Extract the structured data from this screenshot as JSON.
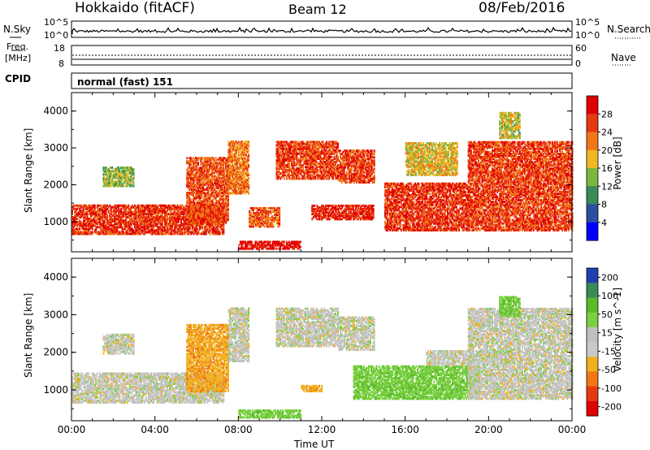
{
  "header": {
    "radar": "Hokkaido (fitACF)",
    "beam": "Beam 12",
    "date": "08/Feb/2016"
  },
  "noise_panel": {
    "left_label": "N.Sky",
    "left_ticks": [
      "10^5",
      "10^0"
    ],
    "right_ticks": [
      "10^5",
      "10^0"
    ],
    "right_label": "N.Search",
    "right_label_style": "dotted"
  },
  "freq_panel": {
    "left_label_line1": "Freq.",
    "left_label_line2": "[MHz]",
    "left_ticks": [
      "18",
      "8"
    ],
    "right_ticks": [
      "60",
      "0"
    ],
    "right_label": "Nave",
    "right_label_style": "dotted"
  },
  "cpid_panel": {
    "label": "CPID",
    "mode": "normal (fast) 151"
  },
  "colors": {
    "power_scale": [
      "#0000ff",
      "#2a4fa0",
      "#3a8a5a",
      "#7ab840",
      "#f0b820",
      "#f07818",
      "#e83810",
      "#e00000"
    ],
    "velocity_scale": [
      "#2040b0",
      "#3a8a5a",
      "#5aba2a",
      "#7ad040",
      "#c0c0c0",
      "#c8c8c8",
      "#f0b020",
      "#f07818",
      "#e83810",
      "#e00000"
    ]
  },
  "chart_data": [
    {
      "type": "heatmap",
      "panel": "power",
      "ylabel": "Slant Range [km]",
      "ylim": [
        180,
        4500
      ],
      "yticks": [
        "1000",
        "2000",
        "3000",
        "4000"
      ],
      "xlim_hours": [
        0,
        24
      ],
      "colorbar": {
        "label": "Power [dB]",
        "ticks": [
          "28",
          "24",
          "20",
          "16",
          "12",
          "8",
          "4"
        ],
        "range": [
          0,
          32
        ]
      },
      "echo_bands": [
        {
          "t_start": 0.0,
          "t_end": 7.3,
          "range_low": 700,
          "range_high": 1500,
          "power_db": 27
        },
        {
          "t_start": 1.5,
          "t_end": 3.0,
          "range_low": 2000,
          "range_high": 2500,
          "power_db": 14
        },
        {
          "t_start": 5.5,
          "t_end": 7.5,
          "range_low": 1000,
          "range_high": 2800,
          "power_db": 25
        },
        {
          "t_start": 7.5,
          "t_end": 8.5,
          "range_low": 1800,
          "range_high": 3200,
          "power_db": 22
        },
        {
          "t_start": 8.0,
          "t_end": 11.0,
          "range_low": 300,
          "range_high": 500,
          "power_db": 30
        },
        {
          "t_start": 8.5,
          "t_end": 10.0,
          "range_low": 900,
          "range_high": 1400,
          "power_db": 24
        },
        {
          "t_start": 9.8,
          "t_end": 12.8,
          "range_low": 2200,
          "range_high": 3200,
          "power_db": 26
        },
        {
          "t_start": 11.5,
          "t_end": 14.5,
          "range_low": 1100,
          "range_high": 1500,
          "power_db": 28
        },
        {
          "t_start": 12.8,
          "t_end": 14.5,
          "range_low": 2100,
          "range_high": 3000,
          "power_db": 26
        },
        {
          "t_start": 15.0,
          "t_end": 19.0,
          "range_low": 800,
          "range_high": 2100,
          "power_db": 27
        },
        {
          "t_start": 16.0,
          "t_end": 18.5,
          "range_low": 2300,
          "range_high": 3200,
          "power_db": 18
        },
        {
          "t_start": 19.0,
          "t_end": 24.0,
          "range_low": 800,
          "range_high": 3200,
          "power_db": 26
        },
        {
          "t_start": 20.5,
          "t_end": 21.5,
          "range_low": 3300,
          "range_high": 4000,
          "power_db": 16
        }
      ]
    },
    {
      "type": "heatmap",
      "panel": "velocity",
      "ylabel": "Slant Range [km]",
      "xlabel": "Time UT",
      "ylim": [
        180,
        4500
      ],
      "yticks": [
        "1000",
        "2000",
        "3000",
        "4000"
      ],
      "xticks": [
        "00:00",
        "04:00",
        "08:00",
        "12:00",
        "16:00",
        "20:00",
        "00:00"
      ],
      "xlim_hours": [
        0,
        24
      ],
      "colorbar": {
        "label": "Velocity [m s^-1]",
        "ticks": [
          "200",
          "100",
          "50",
          "15",
          "-15",
          "-50",
          "-100",
          "-200"
        ],
        "range": [
          -250,
          250
        ]
      },
      "echo_bands": [
        {
          "t_start": 0.0,
          "t_end": 7.3,
          "range_low": 700,
          "range_high": 1500,
          "velocity": 0
        },
        {
          "t_start": 1.5,
          "t_end": 3.0,
          "range_low": 2000,
          "range_high": 2500,
          "velocity": 0
        },
        {
          "t_start": 5.5,
          "t_end": 7.5,
          "range_low": 1000,
          "range_high": 2800,
          "velocity": -40
        },
        {
          "t_start": 7.5,
          "t_end": 8.5,
          "range_low": 1800,
          "range_high": 3200,
          "velocity": 0
        },
        {
          "t_start": 8.0,
          "t_end": 11.0,
          "range_low": 300,
          "range_high": 500,
          "velocity": 40
        },
        {
          "t_start": 9.8,
          "t_end": 12.8,
          "range_low": 2200,
          "range_high": 3200,
          "velocity": 0
        },
        {
          "t_start": 11.0,
          "t_end": 12.0,
          "range_low": 1000,
          "range_high": 1150,
          "velocity": -40
        },
        {
          "t_start": 12.8,
          "t_end": 14.5,
          "range_low": 2100,
          "range_high": 3000,
          "velocity": 0
        },
        {
          "t_start": 13.5,
          "t_end": 19.5,
          "range_low": 800,
          "range_high": 1700,
          "velocity": 40
        },
        {
          "t_start": 17.0,
          "t_end": 19.0,
          "range_low": 1700,
          "range_high": 2100,
          "velocity": 0
        },
        {
          "t_start": 19.0,
          "t_end": 24.0,
          "range_low": 800,
          "range_high": 3200,
          "velocity": 0
        },
        {
          "t_start": 20.5,
          "t_end": 21.5,
          "range_low": 3000,
          "range_high": 3500,
          "velocity": 40
        }
      ]
    }
  ]
}
